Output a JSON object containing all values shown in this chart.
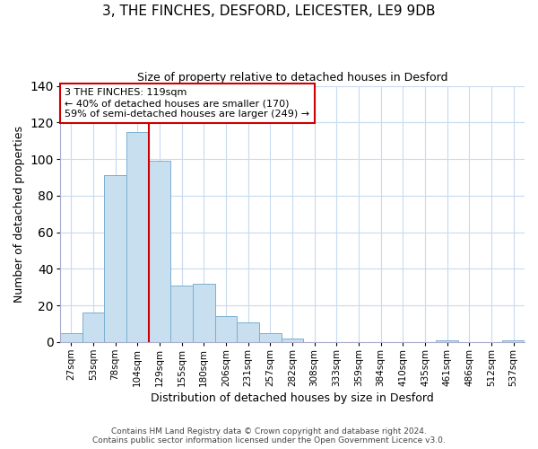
{
  "title": "3, THE FINCHES, DESFORD, LEICESTER, LE9 9DB",
  "subtitle": "Size of property relative to detached houses in Desford",
  "xlabel": "Distribution of detached houses by size in Desford",
  "ylabel": "Number of detached properties",
  "bar_color": "#c8dff0",
  "bar_edge_color": "#7ab0d0",
  "bin_labels": [
    "27sqm",
    "53sqm",
    "78sqm",
    "104sqm",
    "129sqm",
    "155sqm",
    "180sqm",
    "206sqm",
    "231sqm",
    "257sqm",
    "282sqm",
    "308sqm",
    "333sqm",
    "359sqm",
    "384sqm",
    "410sqm",
    "435sqm",
    "461sqm",
    "486sqm",
    "512sqm",
    "537sqm"
  ],
  "bar_heights": [
    5,
    16,
    91,
    115,
    99,
    31,
    32,
    14,
    11,
    5,
    2,
    0,
    0,
    0,
    0,
    0,
    0,
    1,
    0,
    0,
    1
  ],
  "ylim": [
    0,
    140
  ],
  "yticks": [
    0,
    20,
    40,
    60,
    80,
    100,
    120,
    140
  ],
  "vline_x": 3.5,
  "vline_color": "#cc0000",
  "box_edge_color": "#cc0000",
  "marker_label": "3 THE FINCHES: 119sqm",
  "annotation_line1": "← 40% of detached houses are smaller (170)",
  "annotation_line2": "59% of semi-detached houses are larger (249) →",
  "footer_line1": "Contains HM Land Registry data © Crown copyright and database right 2024.",
  "footer_line2": "Contains public sector information licensed under the Open Government Licence v3.0.",
  "background_color": "#ffffff",
  "grid_color": "#c8daf0"
}
